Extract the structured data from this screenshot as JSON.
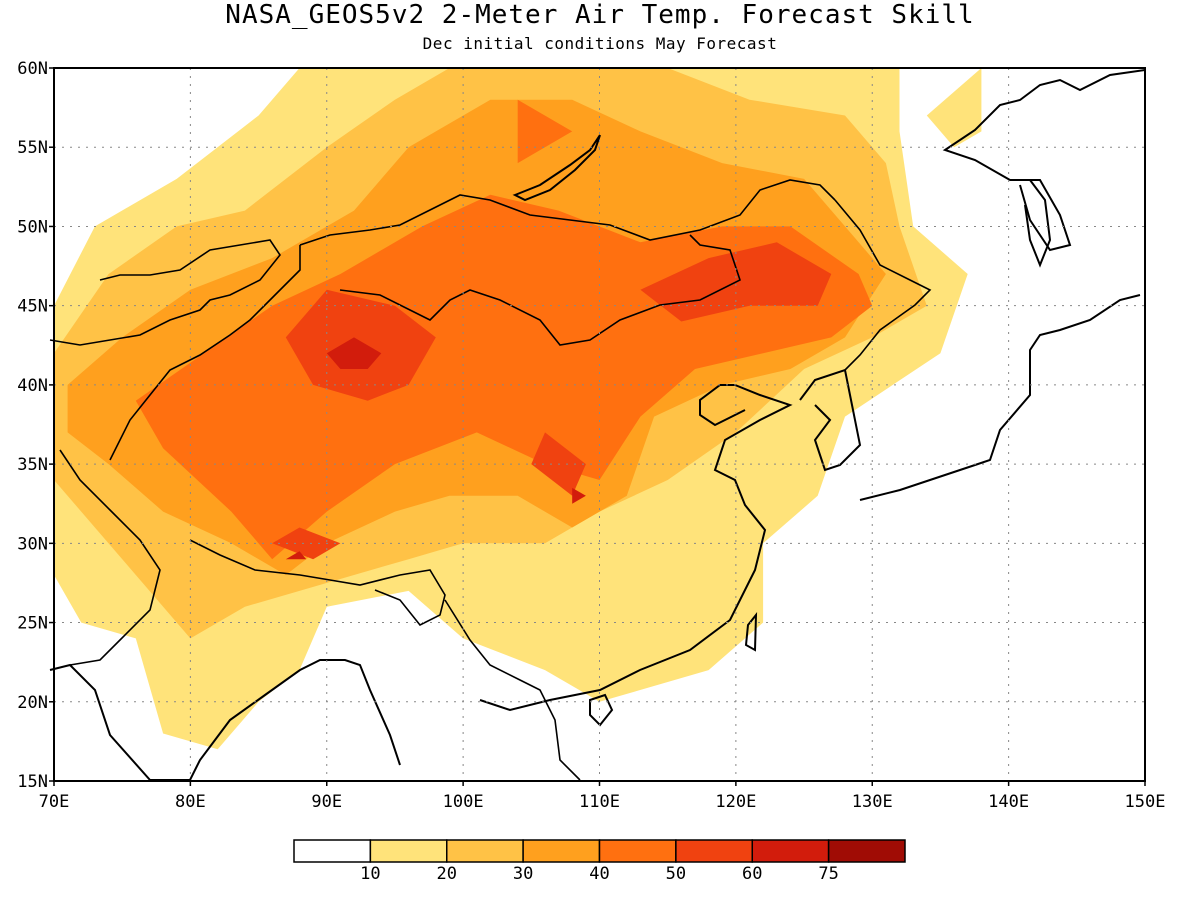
{
  "title": "NASA_GEOS5v2 2-Meter Air Temp. Forecast Skill",
  "subtitle": "Dec initial conditions  May Forecast",
  "axes": {
    "lat_labels": [
      "15N",
      "20N",
      "25N",
      "30N",
      "35N",
      "40N",
      "45N",
      "50N",
      "55N",
      "60N"
    ],
    "lat_values": [
      15,
      20,
      25,
      30,
      35,
      40,
      45,
      50,
      55,
      60
    ],
    "lon_labels": [
      "70E",
      "80E",
      "90E",
      "100E",
      "110E",
      "120E",
      "130E",
      "140E",
      "150E"
    ],
    "lon_values": [
      70,
      80,
      90,
      100,
      110,
      120,
      130,
      140,
      150
    ],
    "lat_range": [
      15,
      60
    ],
    "lon_range": [
      70,
      150
    ],
    "grid": "dotted"
  },
  "colorbar": {
    "labels": [
      "10",
      "20",
      "30",
      "40",
      "50",
      "60",
      "75"
    ],
    "colors": [
      "#ffffff",
      "#ffe37a",
      "#ffc246",
      "#ffa01e",
      "#ff7010",
      "#f04210",
      "#d21c0c",
      "#a00c05"
    ]
  },
  "regions": [
    {
      "level": 1,
      "polys": [
        [
          [
            70,
            45
          ],
          [
            73,
            50
          ],
          [
            79,
            53
          ],
          [
            85,
            57
          ],
          [
            88,
            60
          ],
          [
            132,
            60
          ],
          [
            132,
            56
          ],
          [
            133,
            50
          ],
          [
            137,
            47
          ],
          [
            135,
            42
          ],
          [
            128,
            38
          ],
          [
            126,
            33
          ],
          [
            122,
            30
          ],
          [
            122,
            25
          ],
          [
            118,
            22
          ],
          [
            110,
            20
          ],
          [
            106,
            22
          ],
          [
            100,
            24
          ],
          [
            96,
            27
          ],
          [
            90,
            26
          ],
          [
            88,
            22
          ],
          [
            85,
            20
          ],
          [
            82,
            17
          ],
          [
            78,
            18
          ],
          [
            76,
            24
          ],
          [
            72,
            25
          ],
          [
            70,
            28
          ]
        ],
        [
          [
            138,
            60
          ],
          [
            138,
            56
          ],
          [
            136,
            55
          ],
          [
            134,
            57
          ]
        ]
      ]
    },
    {
      "level": 2,
      "polys": [
        [
          [
            70,
            42
          ],
          [
            74,
            47
          ],
          [
            79,
            50
          ],
          [
            84,
            51
          ],
          [
            90,
            55
          ],
          [
            95,
            58
          ],
          [
            99,
            60
          ],
          [
            115,
            60
          ],
          [
            121,
            58
          ],
          [
            128,
            57
          ],
          [
            131,
            54
          ],
          [
            132,
            50
          ],
          [
            134,
            45
          ],
          [
            130,
            43
          ],
          [
            125,
            41
          ],
          [
            120,
            37
          ],
          [
            115,
            34
          ],
          [
            110,
            32
          ],
          [
            106,
            30
          ],
          [
            100,
            30
          ],
          [
            96,
            29
          ],
          [
            92,
            28
          ],
          [
            88,
            27
          ],
          [
            84,
            26
          ],
          [
            80,
            24
          ],
          [
            77,
            27
          ],
          [
            73,
            31
          ],
          [
            70,
            34
          ]
        ]
      ]
    },
    {
      "level": 3,
      "polys": [
        [
          [
            71,
            40
          ],
          [
            75,
            43
          ],
          [
            80,
            46
          ],
          [
            86,
            48
          ],
          [
            92,
            51
          ],
          [
            96,
            55
          ],
          [
            102,
            58
          ],
          [
            108,
            58
          ],
          [
            113,
            56
          ],
          [
            119,
            54
          ],
          [
            125,
            53
          ],
          [
            128,
            50
          ],
          [
            131,
            47
          ],
          [
            128,
            43
          ],
          [
            124,
            41
          ],
          [
            119,
            40
          ],
          [
            114,
            38
          ],
          [
            112,
            33
          ],
          [
            108,
            31
          ],
          [
            104,
            33
          ],
          [
            99,
            33
          ],
          [
            95,
            32
          ],
          [
            90,
            30
          ],
          [
            87,
            28
          ],
          [
            83,
            30
          ],
          [
            78,
            32
          ],
          [
            74,
            35
          ],
          [
            71,
            37
          ]
        ]
      ]
    },
    {
      "level": 4,
      "polys": [
        [
          [
            76,
            39
          ],
          [
            81,
            42
          ],
          [
            86,
            45
          ],
          [
            91,
            47
          ],
          [
            97,
            50
          ],
          [
            102,
            52
          ],
          [
            107,
            51
          ],
          [
            113,
            49
          ],
          [
            119,
            50
          ],
          [
            124,
            50
          ],
          [
            129,
            47
          ],
          [
            130,
            45
          ],
          [
            127,
            43
          ],
          [
            122,
            42
          ],
          [
            117,
            41
          ],
          [
            113,
            38
          ],
          [
            110,
            34
          ],
          [
            106,
            35
          ],
          [
            101,
            37
          ],
          [
            95,
            35
          ],
          [
            90,
            32
          ],
          [
            86,
            29
          ],
          [
            83,
            32
          ],
          [
            78,
            36
          ]
        ],
        [
          [
            104,
            58
          ],
          [
            108,
            56
          ],
          [
            104,
            54
          ]
        ]
      ]
    },
    {
      "level": 5,
      "polys": [
        [
          [
            87,
            43
          ],
          [
            90,
            46
          ],
          [
            95,
            45
          ],
          [
            98,
            43
          ],
          [
            96,
            40
          ],
          [
            93,
            39
          ],
          [
            89,
            40
          ]
        ],
        [
          [
            113,
            46
          ],
          [
            118,
            48
          ],
          [
            123,
            49
          ],
          [
            127,
            47
          ],
          [
            126,
            45
          ],
          [
            121,
            45
          ],
          [
            116,
            44
          ]
        ],
        [
          [
            106,
            37
          ],
          [
            109,
            35
          ],
          [
            108,
            33
          ],
          [
            105,
            35
          ]
        ],
        [
          [
            86,
            30
          ],
          [
            88,
            31
          ],
          [
            91,
            30
          ],
          [
            89,
            29
          ]
        ]
      ]
    },
    {
      "level": 6,
      "polys": [
        [
          [
            90,
            42
          ],
          [
            92,
            43
          ],
          [
            94,
            42
          ],
          [
            93,
            41
          ],
          [
            91,
            41
          ]
        ],
        [
          [
            108,
            33.5
          ],
          [
            109,
            33
          ],
          [
            108,
            32.5
          ]
        ],
        [
          [
            87,
            29
          ],
          [
            88,
            29.5
          ],
          [
            88.5,
            29
          ]
        ]
      ]
    }
  ]
}
